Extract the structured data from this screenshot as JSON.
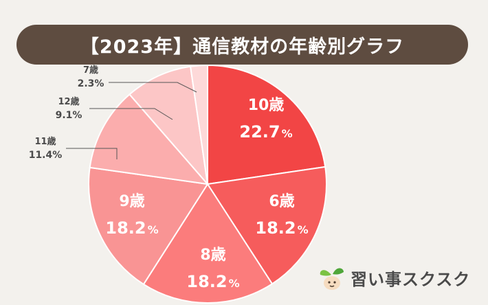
{
  "title": "【2023年】通信教材の年齢別グラフ",
  "brand": {
    "name": "習い事スクスク",
    "logo_icon": "sprout-face-icon"
  },
  "chart_data": {
    "type": "pie",
    "title": "【2023年】通信教材の年齢別グラフ",
    "percent_symbol": "%",
    "slices": [
      {
        "name": "10歳",
        "age": "10",
        "unit": "歳",
        "value": 22.7,
        "label": "22.7",
        "color": "#f24545"
      },
      {
        "name": "6歳",
        "age": "6",
        "unit": "歳",
        "value": 18.2,
        "label": "18.2",
        "color": "#f65c5c"
      },
      {
        "name": "8歳",
        "age": "8",
        "unit": "歳",
        "value": 18.2,
        "label": "18.2",
        "color": "#fb7c7c"
      },
      {
        "name": "9歳",
        "age": "9",
        "unit": "歳",
        "value": 18.2,
        "label": "18.2",
        "color": "#f99494"
      },
      {
        "name": "11歳",
        "age": "11",
        "unit": "歳",
        "value": 11.4,
        "label": "11.4%",
        "color": "#fbadad"
      },
      {
        "name": "12歳",
        "age": "12",
        "unit": "歳",
        "value": 9.1,
        "label": "9.1%",
        "color": "#fcc6c6"
      },
      {
        "name": "7歳",
        "age": "7",
        "unit": "歳",
        "value": 2.3,
        "label": "2.3%",
        "color": "#fdd9d9"
      }
    ]
  }
}
